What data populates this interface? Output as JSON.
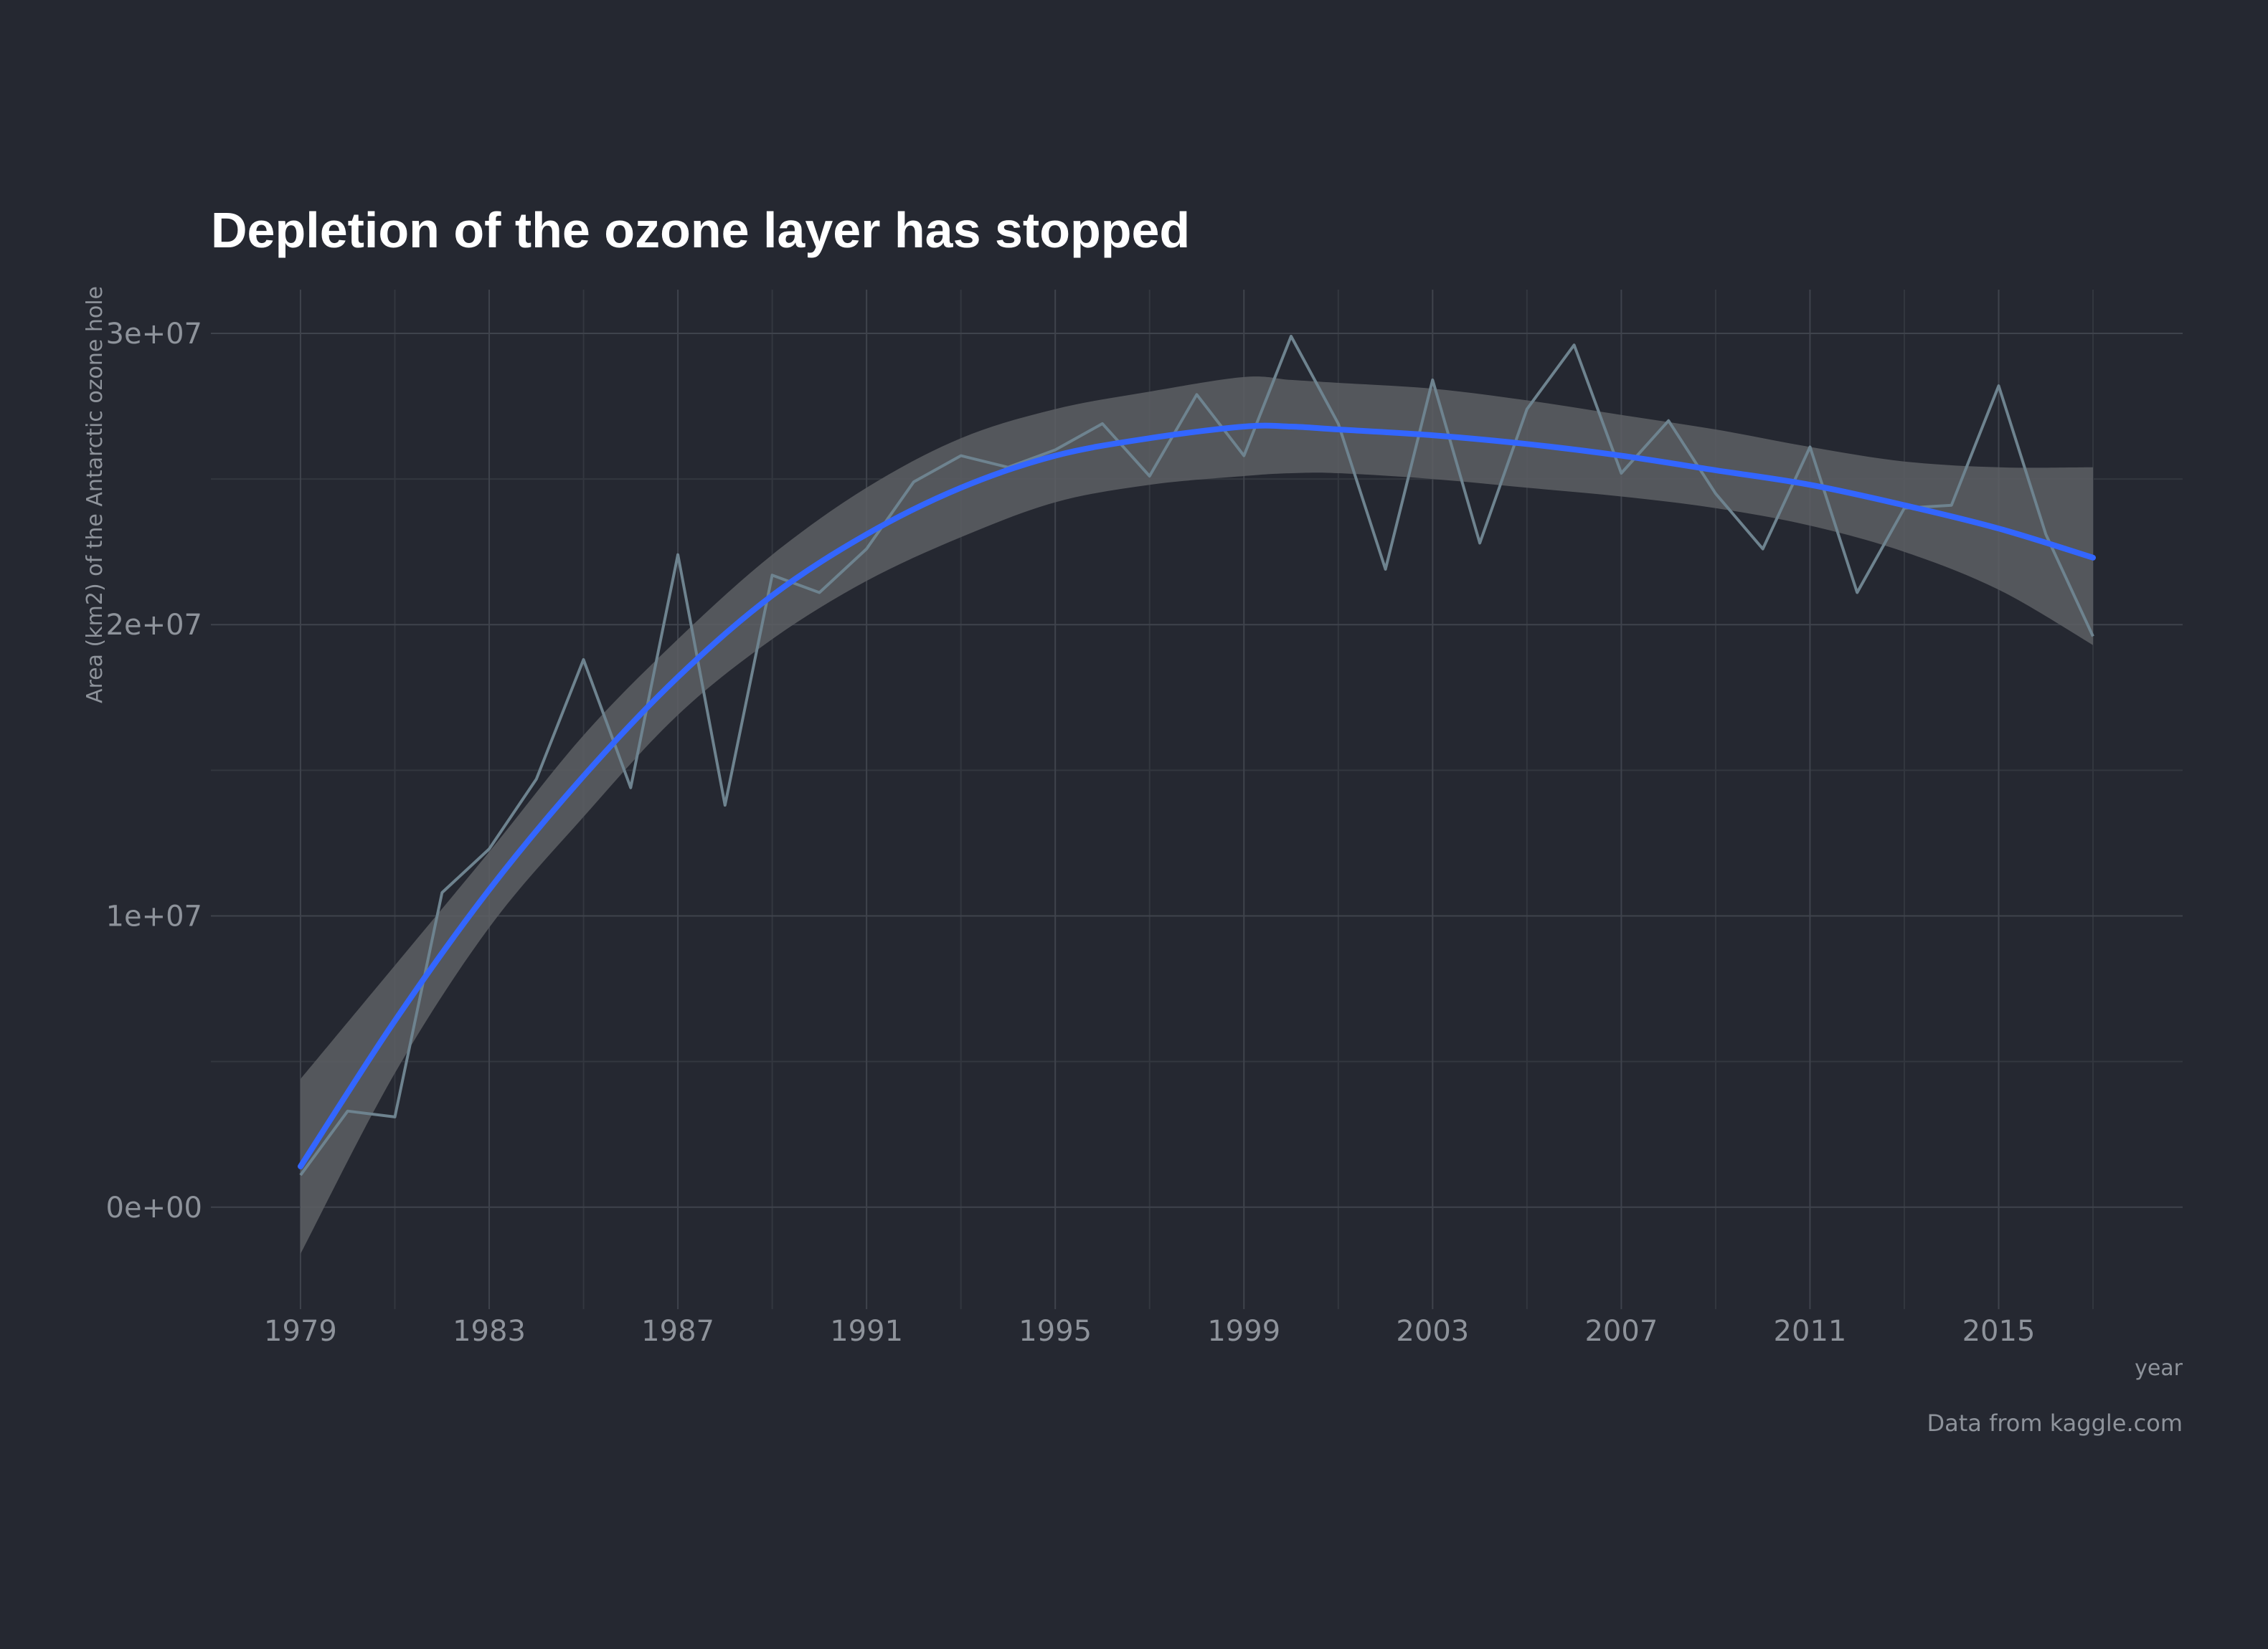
{
  "chart_data": {
    "type": "line",
    "title": "Depletion of the ozone layer has stopped",
    "xlabel": "year",
    "ylabel": "Area (km2) of the Antarctic ozone hole",
    "caption": "Data from kaggle.com",
    "xlim": [
      1977.1,
      2018.9
    ],
    "ylim": [
      -3500000,
      31500000
    ],
    "x_ticks": [
      1979,
      1983,
      1987,
      1991,
      1995,
      1999,
      2003,
      2007,
      2011,
      2015
    ],
    "x_tick_labels": [
      "1979",
      "1983",
      "1987",
      "1991",
      "1995",
      "1999",
      "2003",
      "2007",
      "2011",
      "2015"
    ],
    "y_ticks": [
      0,
      10000000,
      20000000,
      30000000
    ],
    "y_tick_labels": [
      "0e+00",
      "1e+07",
      "2e+07",
      "3e+07"
    ],
    "grid": true,
    "series": [
      {
        "role": "observed",
        "color": "#6e838f",
        "x": [
          1979,
          1980,
          1981,
          1982,
          1983,
          1984,
          1985,
          1986,
          1987,
          1988,
          1989,
          1990,
          1991,
          1992,
          1993,
          1994,
          1995,
          1996,
          1997,
          1998,
          1999,
          2000,
          2001,
          2002,
          2003,
          2004,
          2005,
          2006,
          2007,
          2008,
          2009,
          2010,
          2011,
          2012,
          2013,
          2014,
          2015,
          2016,
          2017
        ],
        "y": [
          1100000,
          3300000,
          3100000,
          10800000,
          12300000,
          14700000,
          18800000,
          14400000,
          22400000,
          13800000,
          21700000,
          21100000,
          22600000,
          24900000,
          25800000,
          25400000,
          26000000,
          26900000,
          25100000,
          27900000,
          25800000,
          29900000,
          26900000,
          21900000,
          28400000,
          22800000,
          27400000,
          29600000,
          25200000,
          27000000,
          24500000,
          22600000,
          26100000,
          21100000,
          24000000,
          24100000,
          28200000,
          23100000,
          19600000
        ]
      },
      {
        "role": "smooth",
        "color": "#3366ff",
        "x": [
          1979,
          1981,
          1983,
          1985,
          1987,
          1989,
          1991,
          1993,
          1995,
          1997,
          1999,
          2000,
          2001,
          2003,
          2005,
          2007,
          2009,
          2011,
          2013,
          2015,
          2017
        ],
        "y": [
          1400000,
          6400000,
          10900000,
          14800000,
          18200000,
          21000000,
          23100000,
          24700000,
          25800000,
          26400000,
          26800000,
          26800000,
          26700000,
          26500000,
          26200000,
          25800000,
          25300000,
          24800000,
          24100000,
          23300000,
          22300000
        ],
        "band_low": [
          -1600000,
          4600000,
          9600000,
          13400000,
          16900000,
          19500000,
          21500000,
          23000000,
          24200000,
          24800000,
          25100000,
          25200000,
          25200000,
          25000000,
          24700000,
          24400000,
          24000000,
          23400000,
          22500000,
          21200000,
          19300000
        ],
        "band_high": [
          4400000,
          8300000,
          12200000,
          16200000,
          19500000,
          22400000,
          24700000,
          26400000,
          27400000,
          28000000,
          28500000,
          28400000,
          28300000,
          28100000,
          27700000,
          27200000,
          26700000,
          26100000,
          25600000,
          25400000,
          25400000
        ],
        "band_color": "#5d5f64"
      }
    ]
  }
}
